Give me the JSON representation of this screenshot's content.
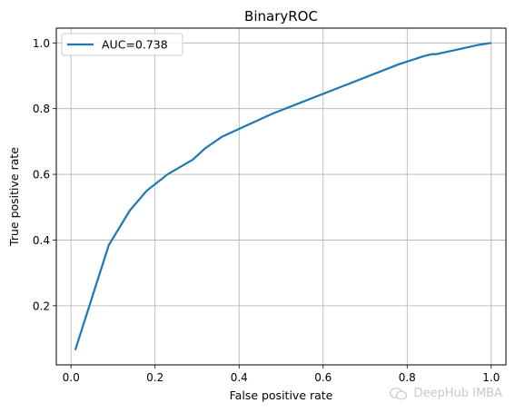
{
  "chart_data": {
    "type": "line",
    "title": "BinaryROC",
    "xlabel": "False positive rate",
    "ylabel": "True positive rate",
    "xlim": [
      -0.035,
      1.035
    ],
    "ylim": [
      0.02,
      1.045
    ],
    "xticks": [
      0.0,
      0.2,
      0.4,
      0.6,
      0.8,
      1.0
    ],
    "xtick_labels": [
      "0.0",
      "0.2",
      "0.4",
      "0.6",
      "0.8",
      "1.0"
    ],
    "yticks": [
      0.2,
      0.4,
      0.6,
      0.8,
      1.0
    ],
    "ytick_labels": [
      "0.2",
      "0.4",
      "0.6",
      "0.8",
      "1.0"
    ],
    "grid": true,
    "legend_position": "top-left",
    "series": [
      {
        "name": "AUC=0.738",
        "color": "#1f77b4",
        "x": [
          0.01,
          0.09,
          0.14,
          0.18,
          0.23,
          0.29,
          0.32,
          0.36,
          0.42,
          0.48,
          0.55,
          0.62,
          0.7,
          0.78,
          0.84,
          0.86,
          0.87,
          0.92,
          0.97,
          1.0
        ],
        "y": [
          0.065,
          0.385,
          0.49,
          0.55,
          0.6,
          0.645,
          0.68,
          0.715,
          0.75,
          0.785,
          0.82,
          0.855,
          0.895,
          0.935,
          0.96,
          0.966,
          0.966,
          0.98,
          0.994,
          1.0
        ]
      }
    ]
  },
  "watermark": {
    "text": "DeepHub IMBA",
    "icon": "wechat-icon"
  }
}
